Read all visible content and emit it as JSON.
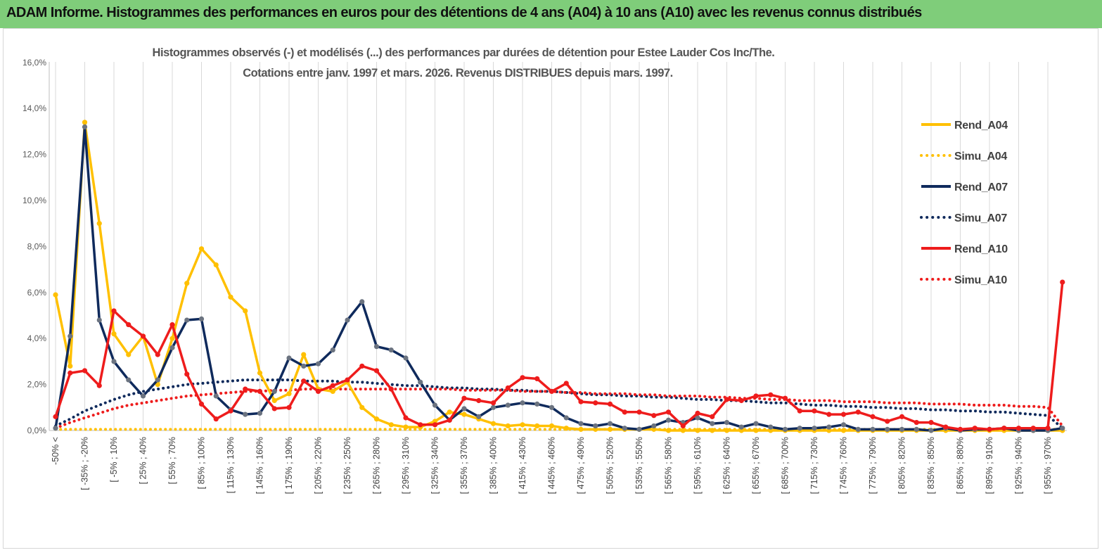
{
  "header": {
    "title": "ADAM Informe. Histogrammes des performances en euros pour des détentions de 4 ans (A04) à 10 ans (A10) avec les revenus connus distribués"
  },
  "chart_data": {
    "type": "line",
    "title_line1": "Histogrammes observés (-) et modélisés (...)  des performances par durées de détention pour Estee Lauder Cos Inc/The.",
    "title_line2": "Cotations entre janv. 1997 et mars. 2026.  Revenus DISTRIBUES depuis mars. 1997.",
    "xlabel": "",
    "ylabel": "",
    "ylim": [
      0,
      16
    ],
    "y_ticks": [
      "0,0%",
      "2,0%",
      "4,0%",
      "6,0%",
      "8,0%",
      "10,0%",
      "12,0%",
      "14,0%",
      "16,0%"
    ],
    "grid": "vertical",
    "legend_position": "right",
    "x_tick_labels": [
      "-50% <",
      "[ -35% ; -20%",
      "[ -5% ; 10%",
      "[ 25% ; 40%",
      "[ 55% ; 70%",
      "[ 85% ; 100%",
      "[ 115% ; 130%",
      "[ 145% ; 160%",
      "[ 175% ; 190%",
      "[ 205% ; 220%",
      "[ 235% ; 250%",
      "[ 265% ; 280%",
      "[ 295% ; 310%",
      "[ 325% ; 340%",
      "[ 355% ; 370%",
      "[ 385% ; 400%",
      "[ 415% ; 430%",
      "[ 445% ; 460%",
      "[ 475% ; 490%",
      "[ 505% ; 520%",
      "[ 535% ; 550%",
      "[ 565% ; 580%",
      "[ 595% ; 610%",
      "[ 625% ; 640%",
      "[ 655% ; 670%",
      "[ 685% ; 700%",
      "[ 715% ; 730%",
      "[ 745% ; 760%",
      "[ 775% ; 790%",
      "[ 805% ; 820%",
      "[ 835% ; 850%",
      "[ 865% ; 880%",
      "[ 895% ; 910%",
      "[ 925% ; 940%",
      "[ 955% ; 970%"
    ],
    "series": [
      {
        "name": "Rend_A04",
        "style": "solid",
        "color": "#ffc000",
        "values": [
          5.9,
          2.8,
          13.4,
          9.0,
          4.2,
          3.3,
          4.1,
          2.0,
          4.0,
          6.4,
          7.9,
          7.2,
          5.8,
          5.2,
          2.5,
          1.3,
          1.6,
          3.3,
          1.8,
          1.7,
          2.1,
          1.0,
          0.5,
          0.25,
          0.15,
          0.15,
          0.4,
          0.8,
          0.7,
          0.5,
          0.3,
          0.2,
          0.25,
          0.2,
          0.2,
          0.1,
          0.05,
          0.05,
          0.05,
          0.05,
          0.05,
          0.05,
          0.0,
          0.0,
          0.0,
          0.0,
          0.0,
          0.0,
          0.0,
          0.0,
          0.0,
          0.0,
          0.0,
          0.0,
          0.0,
          0.0,
          0.0,
          0.0,
          0.0,
          0.0,
          0.0,
          0.0,
          0.0,
          0.0,
          0.0,
          0.0,
          0.0,
          0.0,
          0.0,
          0.0
        ]
      },
      {
        "name": "Simu_A04",
        "style": "dotted",
        "color": "#ffc000",
        "values": [
          0.05,
          0.05,
          0.05,
          0.05,
          0.05,
          0.05,
          0.05,
          0.05,
          0.05,
          0.05,
          0.05,
          0.05,
          0.05,
          0.05,
          0.05,
          0.05,
          0.05,
          0.05,
          0.05,
          0.05,
          0.05,
          0.05,
          0.05,
          0.05,
          0.05,
          0.05,
          0.05,
          0.05,
          0.05,
          0.05,
          0.05,
          0.05,
          0.05,
          0.05,
          0.05,
          0.05,
          0.05,
          0.05,
          0.05,
          0.05,
          0.05,
          0.05,
          0.05,
          0.05,
          0.05,
          0.05,
          0.05,
          0.05,
          0.05,
          0.05,
          0.05,
          0.05,
          0.05,
          0.05,
          0.05,
          0.05,
          0.05,
          0.05,
          0.05,
          0.05,
          0.05,
          0.05,
          0.05,
          0.05,
          0.05,
          0.05,
          0.05,
          0.05,
          0.05,
          0.05
        ]
      },
      {
        "name": "Rend_A07",
        "style": "solid",
        "color": "#0f2a5c",
        "values": [
          0.1,
          4.1,
          13.2,
          4.8,
          3.0,
          2.2,
          1.5,
          2.2,
          3.6,
          4.8,
          4.85,
          1.5,
          0.9,
          0.7,
          0.75,
          1.7,
          3.15,
          2.8,
          2.9,
          3.5,
          4.8,
          5.6,
          3.65,
          3.5,
          3.15,
          2.1,
          1.1,
          0.45,
          0.95,
          0.6,
          1.0,
          1.1,
          1.2,
          1.15,
          1.0,
          0.55,
          0.3,
          0.2,
          0.3,
          0.1,
          0.05,
          0.2,
          0.45,
          0.35,
          0.55,
          0.3,
          0.35,
          0.15,
          0.3,
          0.15,
          0.05,
          0.1,
          0.1,
          0.15,
          0.25,
          0.05,
          0.05,
          0.05,
          0.05,
          0.05,
          0.0,
          0.1,
          0.0,
          0.05,
          0.05,
          0.1,
          0.0,
          0.0,
          0.0,
          0.1
        ]
      },
      {
        "name": "Simu_A07",
        "style": "dotted",
        "color": "#0f2a5c",
        "values": [
          0.2,
          0.5,
          0.85,
          1.1,
          1.35,
          1.55,
          1.7,
          1.8,
          1.9,
          2.0,
          2.05,
          2.1,
          2.15,
          2.2,
          2.2,
          2.2,
          2.2,
          2.15,
          2.15,
          2.15,
          2.1,
          2.1,
          2.05,
          2.0,
          1.95,
          1.95,
          1.9,
          1.85,
          1.85,
          1.8,
          1.8,
          1.75,
          1.75,
          1.7,
          1.7,
          1.65,
          1.6,
          1.55,
          1.55,
          1.5,
          1.5,
          1.45,
          1.45,
          1.4,
          1.35,
          1.35,
          1.3,
          1.3,
          1.25,
          1.2,
          1.2,
          1.15,
          1.1,
          1.1,
          1.05,
          1.05,
          1.0,
          1.0,
          0.95,
          0.95,
          0.9,
          0.9,
          0.85,
          0.85,
          0.8,
          0.8,
          0.75,
          0.7,
          0.65,
          0.1
        ]
      },
      {
        "name": "Rend_A10",
        "style": "solid",
        "color": "#ee1c1c",
        "values": [
          0.6,
          2.5,
          2.6,
          1.95,
          5.2,
          4.6,
          4.1,
          3.3,
          4.6,
          2.45,
          1.15,
          0.5,
          0.85,
          1.8,
          1.7,
          0.95,
          1.0,
          2.15,
          1.7,
          1.95,
          2.2,
          2.8,
          2.6,
          1.8,
          0.55,
          0.25,
          0.25,
          0.45,
          1.4,
          1.3,
          1.2,
          1.85,
          2.3,
          2.25,
          1.7,
          2.05,
          1.25,
          1.2,
          1.15,
          0.8,
          0.8,
          0.65,
          0.8,
          0.2,
          0.75,
          0.6,
          1.35,
          1.3,
          1.5,
          1.55,
          1.4,
          0.85,
          0.85,
          0.7,
          0.7,
          0.8,
          0.6,
          0.4,
          0.6,
          0.35,
          0.35,
          0.15,
          0.05,
          0.1,
          0.05,
          0.1,
          0.1,
          0.1,
          0.1,
          6.45
        ]
      },
      {
        "name": "Simu_A10",
        "style": "dotted",
        "color": "#ee1c1c",
        "values": [
          0.1,
          0.35,
          0.55,
          0.75,
          0.95,
          1.1,
          1.2,
          1.3,
          1.4,
          1.5,
          1.55,
          1.6,
          1.65,
          1.7,
          1.7,
          1.75,
          1.75,
          1.8,
          1.8,
          1.8,
          1.8,
          1.8,
          1.8,
          1.8,
          1.8,
          1.8,
          1.8,
          1.8,
          1.75,
          1.75,
          1.75,
          1.75,
          1.7,
          1.7,
          1.7,
          1.65,
          1.65,
          1.6,
          1.6,
          1.6,
          1.55,
          1.55,
          1.5,
          1.5,
          1.5,
          1.45,
          1.45,
          1.4,
          1.4,
          1.35,
          1.35,
          1.3,
          1.3,
          1.3,
          1.25,
          1.25,
          1.25,
          1.2,
          1.2,
          1.2,
          1.15,
          1.15,
          1.15,
          1.1,
          1.1,
          1.1,
          1.05,
          1.05,
          1.0,
          0.2
        ]
      }
    ]
  }
}
